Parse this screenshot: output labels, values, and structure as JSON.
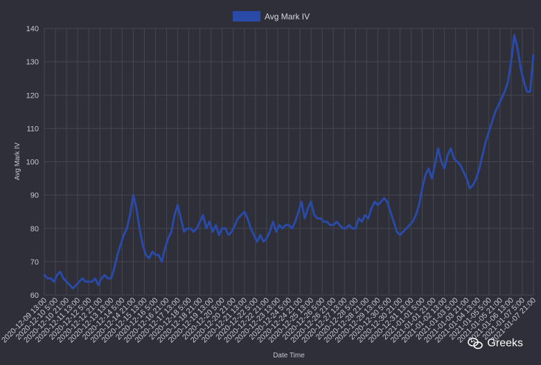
{
  "chart_data": {
    "type": "line",
    "title": "",
    "xlabel": "Date Time",
    "ylabel": "Avg Mark IV",
    "ylim": [
      60,
      140
    ],
    "yticks": [
      60,
      70,
      80,
      90,
      100,
      110,
      120,
      130,
      140
    ],
    "grid": true,
    "legend_position": "top-center",
    "colors": {
      "background": "#2f2f3a",
      "series": "#2a4aa8",
      "grid": "#474753",
      "text": "#c8c8d0"
    },
    "x_ticks": [
      "2020-12-09 13:00",
      "2020-12-10 5:00",
      "2020-12-10 21:00",
      "2020-12-11 13:00",
      "2020-12-12 5:00",
      "2020-12-12 21:00",
      "2020-12-13 13:00",
      "2020-12-14 5:00",
      "2020-12-14 21:00",
      "2020-12-15 13:00",
      "2020-12-16 5:00",
      "2020-12-16 21:00",
      "2020-12-17 13:00",
      "2020-12-18 5:00",
      "2020-12-18 21:00",
      "2020-12-19 13:00",
      "2020-12-20 5:00",
      "2020-12-20 21:00",
      "2020-12-21 13:00",
      "2020-12-22 5:00",
      "2020-12-22 21:00",
      "2020-12-23 13:00",
      "2020-12-24 5:00",
      "2020-12-24 21:00",
      "2020-12-25 13:00",
      "2020-12-26 5:00",
      "2020-12-26 21:00",
      "2020-12-27 13:00",
      "2020-12-28 5:00",
      "2020-12-28 21:00",
      "2020-12-29 13:00",
      "2020-12-30 5:00",
      "2020-12-30 21:00",
      "2020-12-31 13:00",
      "2021-01-01 5:00",
      "2021-01-01 21:00",
      "2021-01-02 13:00",
      "2021-01-03 5:00",
      "2021-01-03 21:00",
      "2021-01-04 13:00",
      "2021-01-05 5:00",
      "2021-01-05 21:00",
      "2021-01-06 13:00",
      "2021-01-07 5:00",
      "2021-01-07 21:00"
    ],
    "series": [
      {
        "name": "Avg Mark IV",
        "values": [
          66,
          65,
          65,
          64,
          66,
          67,
          65,
          64,
          63,
          62,
          63,
          64,
          65,
          64,
          64,
          64,
          65,
          63,
          65,
          66,
          65,
          65,
          68,
          72,
          75,
          78,
          80,
          84,
          90,
          86,
          80,
          75,
          72,
          71,
          73,
          72,
          72,
          70,
          74,
          77,
          79,
          84,
          87,
          83,
          79,
          80,
          80,
          79,
          80,
          82,
          84,
          80,
          82,
          79,
          81,
          78,
          80,
          80,
          78,
          79,
          81,
          83,
          84,
          85,
          83,
          80,
          78,
          76,
          78,
          76,
          77,
          79,
          82,
          79,
          81,
          80,
          81,
          81,
          80,
          82,
          85,
          88,
          83,
          86,
          88,
          84,
          83,
          83,
          82,
          82,
          81,
          81,
          82,
          81,
          80,
          80,
          81,
          80,
          80,
          83,
          82,
          84,
          83,
          86,
          88,
          87,
          88,
          89,
          88,
          85,
          82,
          79,
          78,
          79,
          80,
          81,
          82,
          84,
          87,
          92,
          96,
          98,
          95,
          99,
          104,
          100,
          98,
          102,
          104,
          101,
          100,
          99,
          97,
          95,
          92,
          93,
          95,
          98,
          102,
          106,
          109,
          112,
          115,
          117,
          119,
          121,
          124,
          130,
          138,
          134,
          128,
          124,
          121,
          121,
          132
        ]
      }
    ],
    "annotations": [
      "Greeks"
    ]
  }
}
